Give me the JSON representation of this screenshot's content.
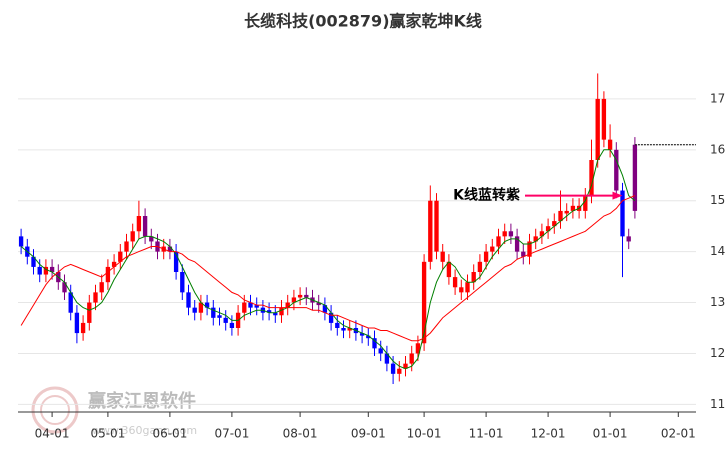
{
  "chart_data": {
    "type": "candlestick",
    "title": "长缆科技(002879)赢家乾坤K线",
    "open": [
      14.3,
      14.1,
      13.9,
      13.7,
      13.55,
      13.7,
      13.6,
      13.4,
      13.2,
      12.8,
      12.4,
      12.6,
      13.0,
      13.2,
      13.4,
      13.7,
      13.8,
      14.0,
      14.2,
      14.4,
      14.7,
      14.3,
      14.2,
      14.0,
      14.1,
      14.0,
      13.6,
      13.2,
      12.9,
      12.8,
      13.0,
      12.9,
      12.75,
      12.7,
      12.6,
      12.5,
      12.8,
      13.0,
      12.95,
      12.9,
      12.85,
      12.8,
      12.75,
      12.9,
      13.0,
      13.1,
      13.15,
      13.1,
      13.0,
      12.95,
      12.8,
      12.6,
      12.5,
      12.45,
      12.5,
      12.4,
      12.35,
      12.3,
      12.1,
      12.0,
      11.8,
      11.6,
      11.7,
      11.8,
      12.0,
      12.2,
      13.8,
      15.0,
      14.0,
      13.8,
      13.5,
      13.3,
      13.2,
      13.4,
      13.6,
      13.8,
      14.0,
      14.1,
      14.3,
      14.4,
      14.3,
      14.0,
      13.9,
      14.2,
      14.3,
      14.4,
      14.5,
      14.6,
      14.75,
      14.8,
      14.9,
      14.8,
      15.1,
      15.8,
      17.0,
      16.2,
      16.0,
      15.2,
      14.3,
      14.8
    ],
    "high": [
      14.45,
      14.25,
      14.05,
      13.85,
      13.85,
      13.85,
      13.75,
      13.55,
      13.35,
      12.95,
      12.75,
      13.15,
      13.35,
      13.55,
      13.85,
      13.95,
      14.15,
      14.35,
      14.55,
      15.0,
      14.85,
      14.45,
      14.35,
      14.25,
      14.25,
      14.15,
      13.75,
      13.35,
      13.05,
      13.15,
      13.15,
      13.05,
      12.9,
      12.85,
      12.75,
      12.95,
      13.15,
      13.15,
      13.1,
      13.05,
      13.0,
      12.95,
      13.05,
      13.15,
      13.25,
      13.3,
      13.3,
      13.25,
      13.15,
      13.1,
      12.95,
      12.75,
      12.65,
      12.65,
      12.65,
      12.55,
      12.5,
      12.45,
      12.25,
      12.15,
      11.95,
      11.85,
      11.95,
      12.15,
      12.35,
      13.95,
      15.3,
      15.15,
      14.15,
      13.95,
      13.65,
      13.45,
      13.55,
      13.75,
      13.95,
      14.15,
      14.25,
      14.45,
      14.55,
      14.55,
      14.45,
      14.15,
      14.35,
      14.45,
      14.55,
      14.65,
      14.75,
      15.2,
      14.95,
      15.05,
      15.05,
      15.25,
      16.2,
      17.5,
      17.15,
      16.5,
      16.15,
      15.35,
      14.45,
      16.25
    ],
    "low": [
      13.95,
      13.75,
      13.55,
      13.4,
      13.4,
      13.45,
      13.25,
      13.05,
      12.65,
      12.2,
      12.25,
      12.45,
      12.85,
      13.05,
      13.25,
      13.55,
      13.65,
      13.85,
      14.05,
      14.25,
      14.15,
      14.05,
      13.85,
      13.85,
      13.85,
      13.45,
      13.05,
      12.75,
      12.65,
      12.65,
      12.75,
      12.55,
      12.55,
      12.45,
      12.35,
      12.35,
      12.65,
      12.75,
      12.75,
      12.65,
      12.65,
      12.6,
      12.6,
      12.75,
      12.85,
      12.95,
      12.95,
      12.85,
      12.8,
      12.65,
      12.45,
      12.35,
      12.3,
      12.3,
      12.25,
      12.2,
      12.15,
      11.95,
      11.85,
      11.65,
      11.4,
      11.45,
      11.55,
      11.65,
      11.85,
      12.05,
      13.65,
      13.85,
      13.65,
      13.35,
      13.15,
      13.05,
      13.05,
      13.25,
      13.45,
      13.65,
      13.85,
      13.95,
      14.15,
      14.15,
      13.85,
      13.75,
      13.75,
      14.05,
      14.15,
      14.25,
      14.35,
      14.45,
      14.6,
      14.65,
      14.65,
      14.65,
      14.95,
      15.65,
      16.05,
      15.85,
      15.05,
      13.5,
      14.05,
      14.65
    ],
    "close": [
      14.1,
      13.9,
      13.7,
      13.55,
      13.7,
      13.6,
      13.4,
      13.2,
      12.8,
      12.4,
      12.6,
      13.0,
      13.2,
      13.4,
      13.7,
      13.8,
      14.0,
      14.2,
      14.4,
      14.7,
      14.3,
      14.2,
      14.0,
      14.1,
      14.0,
      13.6,
      13.2,
      12.9,
      12.8,
      13.0,
      12.9,
      12.7,
      12.7,
      12.6,
      12.5,
      12.8,
      13.0,
      12.9,
      12.9,
      12.8,
      12.8,
      12.75,
      12.9,
      13.0,
      13.1,
      13.15,
      13.1,
      13.0,
      12.95,
      12.8,
      12.6,
      12.5,
      12.45,
      12.5,
      12.4,
      12.35,
      12.3,
      12.1,
      12.0,
      11.8,
      11.6,
      11.7,
      11.8,
      12.0,
      12.2,
      13.8,
      15.0,
      14.0,
      13.8,
      13.5,
      13.3,
      13.2,
      13.4,
      13.6,
      13.8,
      14.0,
      14.1,
      14.3,
      14.4,
      14.3,
      14.0,
      13.9,
      14.2,
      14.3,
      14.4,
      14.5,
      14.6,
      14.8,
      14.8,
      14.9,
      14.8,
      15.1,
      15.8,
      17.0,
      16.2,
      16.0,
      15.2,
      14.3,
      14.2,
      16.1
    ],
    "colors": [
      "#0000ff",
      "#0000ff",
      "#0000ff",
      "#0000ff",
      "#ff0000",
      "#800080",
      "#800080",
      "#800080",
      "#0000ff",
      "#0000ff",
      "#ff0000",
      "#ff0000",
      "#ff0000",
      "#ff0000",
      "#ff0000",
      "#ff0000",
      "#ff0000",
      "#ff0000",
      "#ff0000",
      "#ff0000",
      "#800080",
      "#800080",
      "#800080",
      "#ff0000",
      "#800080",
      "#0000ff",
      "#0000ff",
      "#0000ff",
      "#0000ff",
      "#ff0000",
      "#0000ff",
      "#0000ff",
      "#0000ff",
      "#0000ff",
      "#0000ff",
      "#ff0000",
      "#ff0000",
      "#0000ff",
      "#0000ff",
      "#0000ff",
      "#0000ff",
      "#0000ff",
      "#ff0000",
      "#ff0000",
      "#ff0000",
      "#ff0000",
      "#800080",
      "#800080",
      "#800080",
      "#0000ff",
      "#0000ff",
      "#0000ff",
      "#0000ff",
      "#ff0000",
      "#0000ff",
      "#0000ff",
      "#0000ff",
      "#0000ff",
      "#0000ff",
      "#0000ff",
      "#0000ff",
      "#ff0000",
      "#ff0000",
      "#ff0000",
      "#ff0000",
      "#ff0000",
      "#ff0000",
      "#ff0000",
      "#ff0000",
      "#ff0000",
      "#ff0000",
      "#ff0000",
      "#ff0000",
      "#ff0000",
      "#ff0000",
      "#ff0000",
      "#ff0000",
      "#ff0000",
      "#ff0000",
      "#800080",
      "#800080",
      "#800080",
      "#ff0000",
      "#ff0000",
      "#ff0000",
      "#ff0000",
      "#ff0000",
      "#ff0000",
      "#ff0000",
      "#ff0000",
      "#ff0000",
      "#ff0000",
      "#ff0000",
      "#ff0000",
      "#ff0000",
      "#ff0000",
      "#800080",
      "#0000ff",
      "#800080",
      "#800080"
    ],
    "series": [
      {
        "color": "#008000",
        "values": [
          14.1,
          14.0,
          13.9,
          13.75,
          13.65,
          13.6,
          13.5,
          13.4,
          13.2,
          13.0,
          12.9,
          12.85,
          12.9,
          13.0,
          13.2,
          13.45,
          13.65,
          13.85,
          14.05,
          14.25,
          14.3,
          14.3,
          14.25,
          14.2,
          14.1,
          13.95,
          13.7,
          13.45,
          13.2,
          13.0,
          12.9,
          12.85,
          12.8,
          12.75,
          12.65,
          12.65,
          12.75,
          12.8,
          12.85,
          12.85,
          12.8,
          12.8,
          12.85,
          12.9,
          13.0,
          13.05,
          13.1,
          13.05,
          13.0,
          12.95,
          12.8,
          12.65,
          12.55,
          12.5,
          12.45,
          12.4,
          12.35,
          12.25,
          12.15,
          12.0,
          11.85,
          11.75,
          11.7,
          11.75,
          11.9,
          12.4,
          13.0,
          13.4,
          13.65,
          13.8,
          13.7,
          13.5,
          13.4,
          13.4,
          13.5,
          13.7,
          13.9,
          14.05,
          14.2,
          14.25,
          14.25,
          14.15,
          14.15,
          14.2,
          14.3,
          14.4,
          14.5,
          14.6,
          14.7,
          14.8,
          14.85,
          15.0,
          15.3,
          15.8,
          16.0,
          16.0,
          15.8,
          15.5,
          15.1,
          15.0
        ]
      },
      {
        "color": "#ff0000",
        "values": [
          12.55,
          12.75,
          12.95,
          13.15,
          13.35,
          13.5,
          13.6,
          13.7,
          13.75,
          13.7,
          13.65,
          13.6,
          13.55,
          13.5,
          13.6,
          13.7,
          13.8,
          13.9,
          13.95,
          14.0,
          14.05,
          14.1,
          14.1,
          14.05,
          14.0,
          14.0,
          13.95,
          13.85,
          13.8,
          13.7,
          13.6,
          13.5,
          13.4,
          13.3,
          13.2,
          13.15,
          13.05,
          13.0,
          12.95,
          12.95,
          12.9,
          12.9,
          12.9,
          12.9,
          12.9,
          12.9,
          12.9,
          12.85,
          12.85,
          12.8,
          12.75,
          12.75,
          12.7,
          12.65,
          12.6,
          12.55,
          12.5,
          12.5,
          12.45,
          12.45,
          12.4,
          12.35,
          12.3,
          12.25,
          12.25,
          12.3,
          12.4,
          12.55,
          12.7,
          12.8,
          12.9,
          13.0,
          13.1,
          13.2,
          13.3,
          13.4,
          13.5,
          13.6,
          13.7,
          13.75,
          13.85,
          13.9,
          13.95,
          14.0,
          14.05,
          14.1,
          14.15,
          14.2,
          14.25,
          14.3,
          14.35,
          14.4,
          14.5,
          14.6,
          14.7,
          14.75,
          14.85,
          15.0,
          15.05,
          15.1
        ]
      }
    ],
    "xlim": [
      -0.5,
      109.5
    ],
    "xticks": [
      {
        "value": 5,
        "label": "04-01"
      },
      {
        "value": 14,
        "label": "05-01"
      },
      {
        "value": 24,
        "label": "06-01"
      },
      {
        "value": 34,
        "label": "07-01"
      },
      {
        "value": 45,
        "label": "08-01"
      },
      {
        "value": 56,
        "label": "09-01"
      },
      {
        "value": 65,
        "label": "10-01"
      },
      {
        "value": 75,
        "label": "11-01"
      },
      {
        "value": 85,
        "label": "12-01"
      },
      {
        "value": 95,
        "label": "01-01"
      },
      {
        "value": 106,
        "label": "02-01"
      }
    ],
    "ylim": [
      10.85,
      18
    ],
    "yticks": [
      11,
      12,
      13,
      14,
      15,
      16,
      17
    ],
    "grid": true,
    "annotation": {
      "text": "K线蓝转紫",
      "x": 97,
      "y": 15.1,
      "color": "#ff0066"
    },
    "watermark": {
      "name": "赢家江恩软件",
      "url": "www.360gann.com"
    }
  }
}
